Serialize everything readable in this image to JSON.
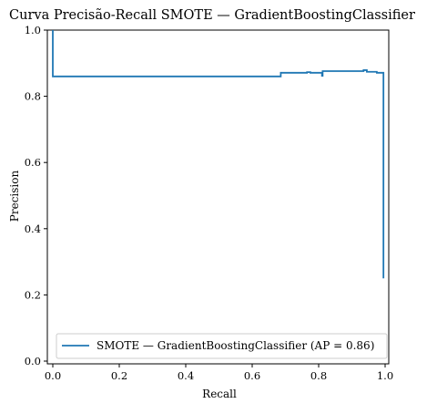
{
  "chart_data": {
    "type": "line",
    "title": "Curva Precisão-Recall SMOTE — GradientBoostingClassifier",
    "xlabel": "Recall",
    "ylabel": "Precision",
    "xlim": [
      0.0,
      1.0
    ],
    "ylim": [
      0.0,
      1.0
    ],
    "x_ticks": [
      "0.0",
      "0.2",
      "0.4",
      "0.6",
      "0.8",
      "1.0"
    ],
    "y_ticks": [
      "0.0",
      "0.2",
      "0.4",
      "0.6",
      "0.8",
      "1.0"
    ],
    "grid": false,
    "legend_position": "lower-right",
    "series": [
      {
        "name": "SMOTE — GradientBoostingClassifier (AP = 0.86)",
        "color": "#1f77b4",
        "drawstyle": "steps-post",
        "x": [
          0.0,
          0.0,
          0.003,
          0.686,
          0.686,
          0.765,
          0.765,
          0.775,
          0.775,
          0.81,
          0.81,
          0.812,
          0.812,
          0.935,
          0.935,
          0.945,
          0.945,
          0.975,
          0.975,
          0.995,
          0.995
        ],
        "y": [
          1.0,
          0.86,
          0.86,
          0.86,
          0.871,
          0.871,
          0.873,
          0.873,
          0.871,
          0.871,
          0.862,
          0.862,
          0.876,
          0.876,
          0.879,
          0.879,
          0.874,
          0.874,
          0.871,
          0.871,
          0.25
        ]
      }
    ]
  }
}
